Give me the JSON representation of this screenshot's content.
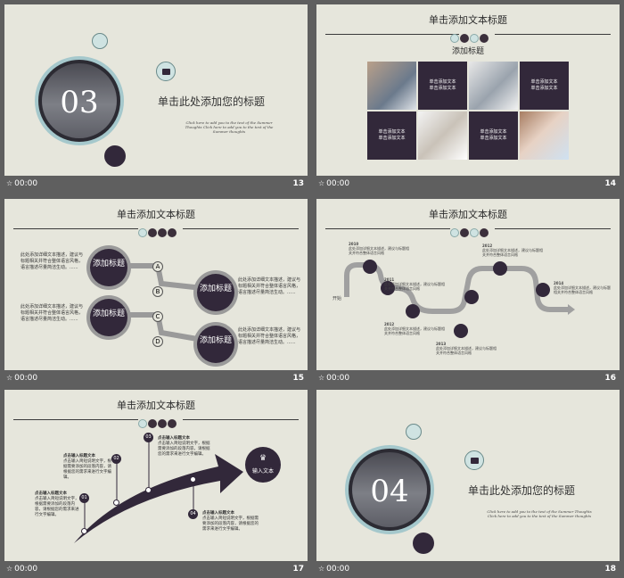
{
  "slides": [
    {
      "num": "13",
      "time": "00:00",
      "section_num": "03",
      "title": "单击此处添加您的标题",
      "body": "Click here to add you to the text of the Summer Thoughts Click here to add you to the text of the Summer thoughts"
    },
    {
      "num": "14",
      "time": "00:00",
      "title": "单击添加文本标题",
      "subtitle": "添加标题",
      "tile_text": [
        "单击添加文本",
        "单击添加文本"
      ]
    },
    {
      "num": "15",
      "time": "00:00",
      "title": "单击添加文本标题",
      "bubbles": [
        "添加标题",
        "添加标题",
        "添加标题",
        "添加标题"
      ],
      "letters": [
        "A",
        "B",
        "C",
        "D"
      ],
      "side_text": "此处添加详细文本描述，建议与标题相关并符合整体语言风格，语言描述尽量简洁生动。......"
    },
    {
      "num": "16",
      "time": "00:00",
      "title": "单击添加文本标题",
      "start": "开始",
      "years": [
        "2010",
        "2011",
        "2012",
        "2013",
        "2012",
        "2014"
      ],
      "note": "此处添加详细文本描述，建议与标题相关并符合整体语言风格"
    },
    {
      "num": "17",
      "time": "00:00",
      "title": "单击添加文本标题",
      "target": "输入文本",
      "steps": [
        {
          "n": "01",
          "label": "点击输入标题文本"
        },
        {
          "n": "02",
          "label": "点击输入标题文本"
        },
        {
          "n": "03",
          "label": "点击输入标题文本"
        },
        {
          "n": "04",
          "label": "点击输入标题文本"
        }
      ],
      "step_text": "点击输入简短说明文字，根据需要添加的段落内容，请根据您的需求来进行文字编辑。"
    },
    {
      "num": "18",
      "time": "00:00",
      "section_num": "04",
      "title": "单击此处添加您的标题",
      "body": "Click here to add you to the text of the Summer Thoughts Click here to add you to the text of the Summer thoughts"
    }
  ],
  "colors": {
    "bg": "#e6e6dc",
    "dark": "#32283a",
    "accent": "#cfe3e2",
    "gray": "#9a9a9a"
  }
}
